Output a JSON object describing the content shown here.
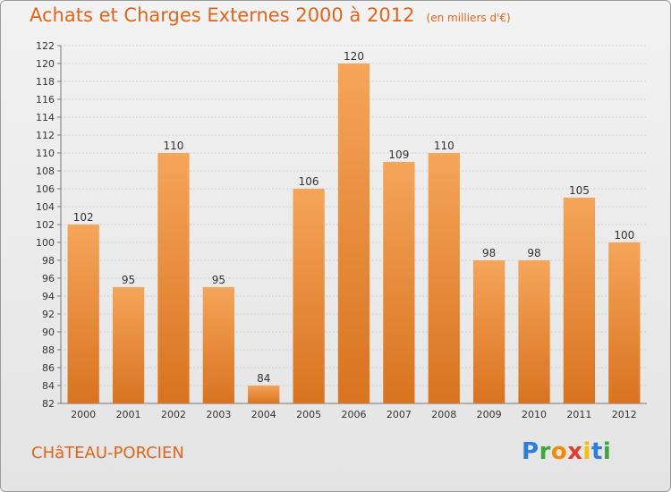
{
  "header": {
    "title": "Achats et Charges Externes 2000 à 2012",
    "subtitle": "(en milliers d'€)"
  },
  "footer": {
    "commune": "CHâTEAU-PORCIEN",
    "logo_letters": [
      "P",
      "r",
      "o",
      "x",
      "i",
      "t",
      "i"
    ],
    "logo_colors": [
      "#2b7fd6",
      "#3aa83a",
      "#f08c00",
      "#e63b2e",
      "#f2c200",
      "#2b7fd6",
      "#3aa83a"
    ]
  },
  "chart_data": {
    "type": "bar",
    "categories": [
      "2000",
      "2001",
      "2002",
      "2003",
      "2004",
      "2005",
      "2006",
      "2007",
      "2008",
      "2009",
      "2010",
      "2011",
      "2012"
    ],
    "values": [
      102,
      95,
      110,
      95,
      84,
      106,
      120,
      109,
      110,
      98,
      98,
      105,
      100
    ],
    "data_labels": [
      "102",
      "95",
      "110",
      "95",
      "84",
      "106",
      "120",
      "109",
      "110",
      "98",
      "98",
      "105",
      "100"
    ],
    "title": "Achats et Charges Externes 2000 à 2012",
    "xlabel": "",
    "ylabel": "",
    "ylim": [
      82,
      122
    ],
    "yticks": [
      82,
      84,
      86,
      88,
      90,
      92,
      94,
      96,
      98,
      100,
      102,
      104,
      106,
      108,
      110,
      112,
      114,
      116,
      118,
      120,
      122
    ],
    "grid": true,
    "legend": "none",
    "bar_color_top": "#f5a55a",
    "bar_color_bottom": "#d9731f"
  }
}
